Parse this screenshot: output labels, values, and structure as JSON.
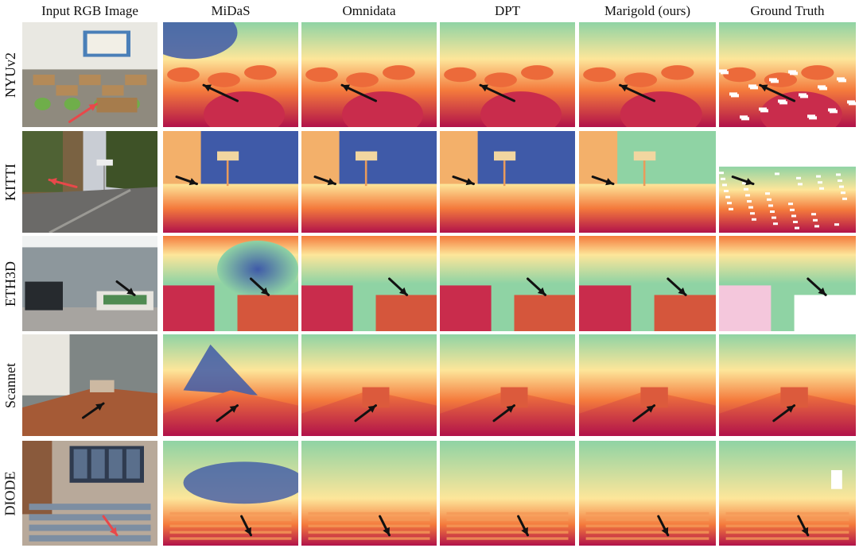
{
  "figure": {
    "columns": [
      {
        "id": "input",
        "label": "Input RGB Image"
      },
      {
        "id": "midas",
        "label": "MiDaS"
      },
      {
        "id": "omnidata",
        "label": "Omnidata"
      },
      {
        "id": "dpt",
        "label": "DPT"
      },
      {
        "id": "marigold",
        "label": "Marigold (ours)"
      },
      {
        "id": "gt",
        "label": "Ground Truth"
      }
    ],
    "rows": [
      {
        "id": "nyuv2",
        "label": "NYUv2"
      },
      {
        "id": "kitti",
        "label": "KITTI"
      },
      {
        "id": "eth3d",
        "label": "ETH3D"
      },
      {
        "id": "scannet",
        "label": "Scannet"
      },
      {
        "id": "diode",
        "label": "DIODE"
      }
    ],
    "colors": {
      "near": "#b1124a",
      "mid_near": "#f47a3c",
      "mid": "#fde69a",
      "mid_far": "#8fd3a4",
      "far": "#3f5aa8",
      "arrow": "#111111",
      "red_arrow": "#e8484a"
    }
  }
}
